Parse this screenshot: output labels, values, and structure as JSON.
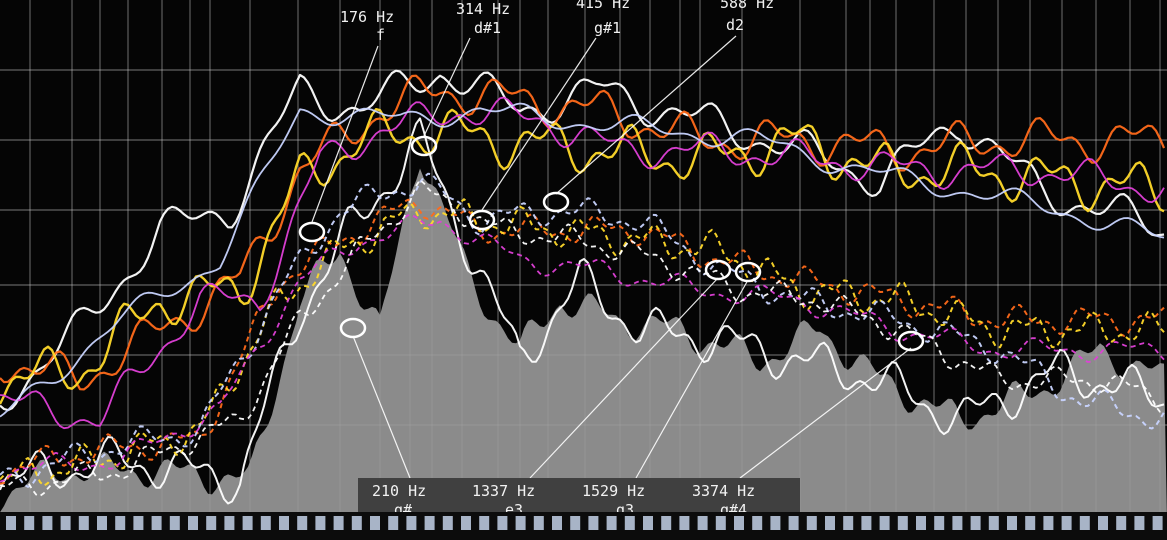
{
  "colors": {
    "background": "#050505",
    "grid": "#d8d8d8",
    "white_trace": "#ffffff",
    "orange_trace": "#ff6a1a",
    "yellow_trace": "#ffd92a",
    "magenta_trace": "#e040d8",
    "lightblue_trace": "#c8d4ff",
    "fill_area": "#9a9a9a",
    "label_box": "#3a3a3a",
    "piano_key": "#b9c6dc"
  },
  "top_labels": [
    {
      "freq": "176 Hz",
      "note": "f"
    },
    {
      "freq": "314 Hz",
      "note": "d#1"
    },
    {
      "freq": "415 Hz",
      "note": "g#1"
    },
    {
      "freq": "588 Hz",
      "note": "d2"
    }
  ],
  "bottom_labels": [
    {
      "freq": "210 Hz",
      "note": "g#"
    },
    {
      "freq": "1337 Hz",
      "note": "e3"
    },
    {
      "freq": "1529 Hz",
      "note": "g3"
    },
    {
      "freq": "3374 Hz",
      "note": "g#4"
    }
  ]
}
